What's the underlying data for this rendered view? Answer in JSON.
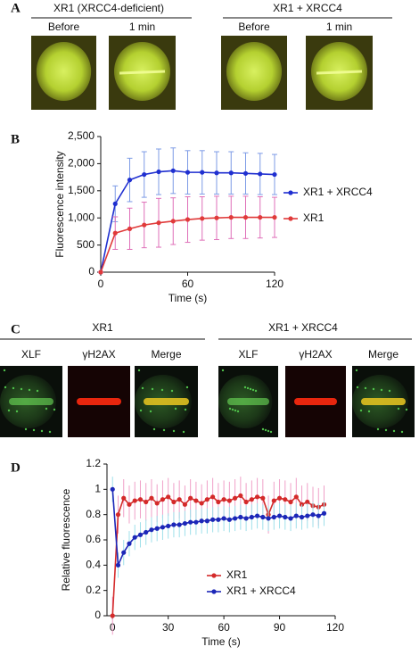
{
  "panel_labels": [
    "A",
    "B",
    "C",
    "D"
  ],
  "panel_a": {
    "groups": [
      {
        "title": "XR1 (XRCC4-deficient)",
        "columns": [
          "Before",
          "1 min"
        ]
      },
      {
        "title": "XR1 + XRCC4",
        "columns": [
          "Before",
          "1 min"
        ]
      }
    ]
  },
  "panel_c": {
    "groups": [
      {
        "title": "XR1",
        "columns": [
          "XLF",
          "γH2AX",
          "Merge"
        ]
      },
      {
        "title": "XR1 + XRCC4",
        "columns": [
          "XLF",
          "γH2AX",
          "Merge"
        ]
      }
    ]
  },
  "chart_data": [
    {
      "type": "line",
      "x_label": "Time (s)",
      "y_label": "Fluorescence intensity",
      "legend": "right",
      "x": [
        0,
        10,
        20,
        30,
        40,
        50,
        60,
        70,
        80,
        90,
        100,
        110,
        120
      ],
      "xlim": [
        0,
        120
      ],
      "xticks": [
        0,
        60,
        120
      ],
      "ylim": [
        0,
        2500
      ],
      "yticks": [
        0,
        500,
        {
          "value": 1000,
          "label": "1,000"
        },
        {
          "value": 1500,
          "label": "1,500"
        },
        {
          "value": 2000,
          "label": "2,000"
        },
        {
          "value": 2500,
          "label": "2,500"
        }
      ],
      "series": [
        {
          "name": "XR1 + XRCC4",
          "color": "#1f2fd0",
          "error_color": "#7d9be6",
          "values": [
            0,
            1260,
            1700,
            1800,
            1850,
            1870,
            1840,
            1840,
            1830,
            1830,
            1820,
            1810,
            1800
          ],
          "errors": [
            0,
            330,
            400,
            420,
            420,
            420,
            400,
            400,
            390,
            390,
            380,
            380,
            370
          ]
        },
        {
          "name": "XR1",
          "color": "#e03a3a",
          "error_color": "#df6fb8",
          "values": [
            0,
            720,
            800,
            870,
            910,
            940,
            970,
            990,
            1000,
            1010,
            1010,
            1010,
            1010
          ],
          "errors": [
            0,
            300,
            380,
            420,
            450,
            430,
            420,
            400,
            400,
            390,
            390,
            380,
            370
          ]
        }
      ]
    },
    {
      "type": "line",
      "x_label": "Time (s)",
      "y_label": "Relative fluorescence",
      "legend": "lower center",
      "x": [
        0,
        3,
        6,
        9,
        12,
        15,
        18,
        21,
        24,
        27,
        30,
        33,
        36,
        39,
        42,
        45,
        48,
        51,
        54,
        57,
        60,
        63,
        66,
        69,
        72,
        75,
        78,
        81,
        84,
        87,
        90,
        93,
        96,
        99,
        102,
        105,
        108,
        111,
        114
      ],
      "xlim": [
        -3,
        120
      ],
      "xticks": [
        0,
        30,
        60,
        90,
        120
      ],
      "ylim": [
        0,
        1.2
      ],
      "yticks": [
        0,
        0.2,
        0.4,
        0.6,
        0.8,
        1,
        1.2
      ],
      "series": [
        {
          "name": "XR1",
          "color": "#d42a2a",
          "error_color": "#f0a0c8",
          "error": 0.15,
          "values": [
            0,
            0.8,
            0.93,
            0.88,
            0.91,
            0.92,
            0.9,
            0.93,
            0.89,
            0.92,
            0.94,
            0.9,
            0.92,
            0.88,
            0.93,
            0.91,
            0.89,
            0.92,
            0.94,
            0.9,
            0.92,
            0.91,
            0.93,
            0.95,
            0.9,
            0.92,
            0.94,
            0.93,
            0.8,
            0.91,
            0.93,
            0.92,
            0.9,
            0.94,
            0.88,
            0.9,
            0.87,
            0.86,
            0.88
          ]
        },
        {
          "name": "XR1 + XRCC4",
          "color": "#1c27b8",
          "error_color": "#9fe0ea",
          "error": 0.1,
          "values": [
            1,
            0.4,
            0.5,
            0.57,
            0.62,
            0.64,
            0.66,
            0.68,
            0.69,
            0.7,
            0.71,
            0.72,
            0.72,
            0.73,
            0.74,
            0.74,
            0.75,
            0.75,
            0.76,
            0.76,
            0.77,
            0.76,
            0.77,
            0.78,
            0.77,
            0.78,
            0.79,
            0.78,
            0.77,
            0.78,
            0.79,
            0.78,
            0.77,
            0.79,
            0.78,
            0.79,
            0.8,
            0.79,
            0.81
          ]
        }
      ]
    }
  ]
}
